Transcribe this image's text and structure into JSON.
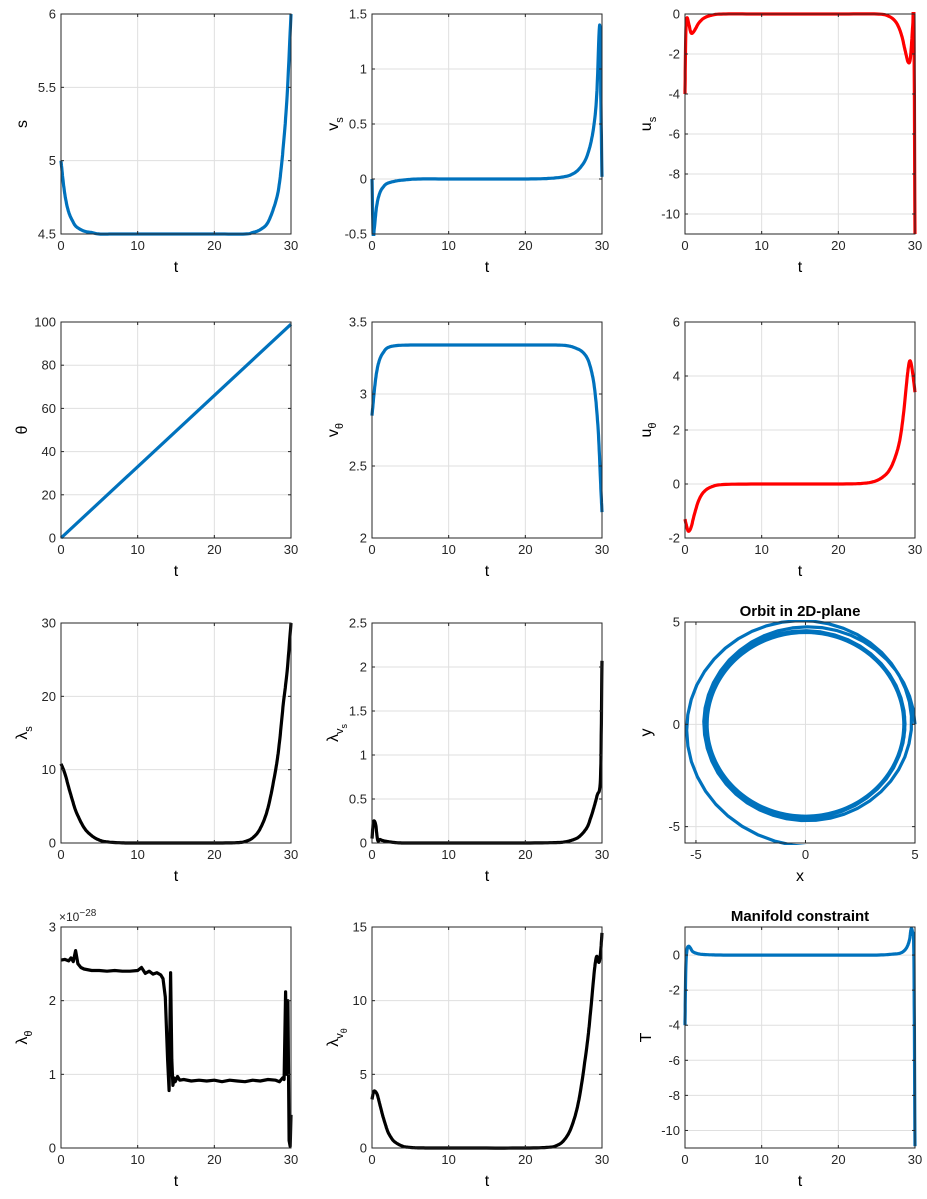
{
  "colors": {
    "blue": "#0072BD",
    "red": "#FF0000",
    "black": "#000000",
    "grid": "#DFDFDF",
    "axis": "#262626"
  },
  "chart_data": [
    {
      "type": "line",
      "id": "s",
      "title": "",
      "xlabel": "t",
      "ylabel": "s",
      "ylabel_sub": "",
      "color": "blue",
      "xlim": [
        0,
        30
      ],
      "ylim": [
        4.5,
        6
      ],
      "xticks": [
        "0",
        "10",
        "20",
        "30"
      ],
      "yticks": [
        "4.5",
        "5",
        "5.5",
        "6"
      ],
      "grid": true,
      "series": [
        {
          "x": [
            0,
            0.3,
            0.6,
            1,
            1.5,
            2,
            3,
            4,
            5,
            7,
            10,
            15,
            20,
            24,
            25,
            26,
            27,
            28,
            28.5,
            29,
            29.5,
            30
          ],
          "y": [
            5.0,
            4.85,
            4.74,
            4.65,
            4.59,
            4.55,
            4.52,
            4.51,
            4.5,
            4.5,
            4.5,
            4.5,
            4.5,
            4.5,
            4.51,
            4.53,
            4.58,
            4.72,
            4.85,
            5.1,
            5.45,
            6.0
          ]
        }
      ]
    },
    {
      "type": "line",
      "id": "vs",
      "title": "",
      "xlabel": "t",
      "ylabel": "v",
      "ylabel_sub": "s",
      "color": "blue",
      "xlim": [
        0,
        30
      ],
      "ylim": [
        -0.5,
        1.5
      ],
      "xticks": [
        "0",
        "10",
        "20",
        "30"
      ],
      "yticks": [
        "-0.5",
        "0",
        "0.5",
        "1",
        "1.5"
      ],
      "grid": true,
      "series": [
        {
          "x": [
            0,
            0.15,
            0.3,
            0.6,
            1,
            1.5,
            2,
            3,
            4,
            6,
            10,
            15,
            20,
            23,
            25,
            26,
            27,
            28,
            28.8,
            29.3,
            29.7,
            29.85,
            30
          ],
          "y": [
            0,
            -0.5,
            -0.45,
            -0.25,
            -0.13,
            -0.07,
            -0.04,
            -0.02,
            -0.01,
            0,
            0,
            0,
            0,
            0.005,
            0.02,
            0.04,
            0.09,
            0.2,
            0.42,
            0.75,
            1.4,
            0.7,
            0.02
          ]
        }
      ]
    },
    {
      "type": "line",
      "id": "us",
      "title": "",
      "xlabel": "t",
      "ylabel": "u",
      "ylabel_sub": "s",
      "color": "red",
      "xlim": [
        0,
        30
      ],
      "ylim": [
        -11,
        0
      ],
      "xticks": [
        "0",
        "10",
        "20",
        "30"
      ],
      "yticks": [
        "-10",
        "-8",
        "-6",
        "-4",
        "-2",
        "0"
      ],
      "grid": true,
      "series": [
        {
          "x": [
            0,
            0.1,
            0.25,
            0.5,
            0.8,
            1.2,
            1.8,
            2.5,
            3.5,
            5,
            10,
            20,
            25,
            26.5,
            27.5,
            28.2,
            28.7,
            29.1,
            29.4,
            29.7,
            29.85,
            30
          ],
          "y": [
            -4.0,
            -1.0,
            -0.2,
            -0.5,
            -0.95,
            -0.85,
            -0.45,
            -0.2,
            -0.06,
            0,
            0,
            0,
            0,
            -0.1,
            -0.4,
            -1.0,
            -1.8,
            -2.4,
            -2.2,
            -0.6,
            0,
            -11
          ]
        }
      ]
    },
    {
      "type": "line",
      "id": "theta",
      "title": "",
      "xlabel": "t",
      "ylabel": "θ",
      "ylabel_sub": "",
      "color": "blue",
      "xlim": [
        0,
        30
      ],
      "ylim": [
        0,
        100
      ],
      "xticks": [
        "0",
        "10",
        "20",
        "30"
      ],
      "yticks": [
        "0",
        "20",
        "40",
        "60",
        "80",
        "100"
      ],
      "grid": true,
      "series": [
        {
          "x": [
            0,
            30
          ],
          "y": [
            0,
            99
          ]
        }
      ]
    },
    {
      "type": "line",
      "id": "vtheta",
      "title": "",
      "xlabel": "t",
      "ylabel": "v",
      "ylabel_sub": "θ",
      "color": "blue",
      "xlim": [
        0,
        30
      ],
      "ylim": [
        2,
        3.5
      ],
      "xticks": [
        "0",
        "10",
        "20",
        "30"
      ],
      "yticks": [
        "2",
        "2.5",
        "3",
        "3.5"
      ],
      "grid": true,
      "series": [
        {
          "x": [
            0,
            0.3,
            0.6,
            1,
            1.5,
            2,
            3,
            5,
            10,
            20,
            24,
            25.5,
            26.5,
            27.5,
            28.3,
            29,
            29.5,
            29.8,
            30
          ],
          "y": [
            2.85,
            3.02,
            3.15,
            3.24,
            3.29,
            3.32,
            3.335,
            3.34,
            3.34,
            3.34,
            3.34,
            3.335,
            3.32,
            3.29,
            3.22,
            3.05,
            2.75,
            2.4,
            2.18
          ]
        }
      ]
    },
    {
      "type": "line",
      "id": "utheta",
      "title": "",
      "xlabel": "t",
      "ylabel": "u",
      "ylabel_sub": "θ",
      "color": "red",
      "xlim": [
        0,
        30
      ],
      "ylim": [
        -2,
        6
      ],
      "xticks": [
        "0",
        "10",
        "20",
        "30"
      ],
      "yticks": [
        "-2",
        "0",
        "2",
        "4",
        "6"
      ],
      "grid": true,
      "series": [
        {
          "x": [
            0,
            0.2,
            0.45,
            0.8,
            1.2,
            1.8,
            2.5,
            3.5,
            5,
            10,
            20,
            23,
            24.5,
            25.5,
            26.5,
            27.3,
            28,
            28.5,
            29,
            29.3,
            29.6,
            30
          ],
          "y": [
            -1.3,
            -1.55,
            -1.75,
            -1.6,
            -1.15,
            -0.6,
            -0.28,
            -0.1,
            -0.02,
            0,
            0,
            0.02,
            0.08,
            0.2,
            0.45,
            0.9,
            1.6,
            2.6,
            4.0,
            4.55,
            4.3,
            3.4
          ]
        }
      ]
    },
    {
      "type": "line",
      "id": "lambda_s",
      "title": "",
      "xlabel": "t",
      "ylabel": "λ",
      "ylabel_sub": "s",
      "color": "black",
      "xlim": [
        0,
        30
      ],
      "ylim": [
        0,
        30
      ],
      "xticks": [
        "0",
        "10",
        "20",
        "30"
      ],
      "yticks": [
        "0",
        "10",
        "20",
        "30"
      ],
      "grid": true,
      "series": [
        {
          "x": [
            0,
            0.5,
            1,
            1.5,
            2,
            3,
            4,
            5,
            6,
            8,
            10,
            20,
            23,
            24,
            25,
            26,
            27,
            28,
            28.5,
            29,
            29.5,
            30
          ],
          "y": [
            10.8,
            9.5,
            7.6,
            5.8,
            4.2,
            2.1,
            1.0,
            0.4,
            0.15,
            0.02,
            0,
            0,
            0.05,
            0.2,
            0.7,
            2.0,
            4.8,
            10,
            13.8,
            19,
            23.5,
            30
          ]
        }
      ]
    },
    {
      "type": "line",
      "id": "lambda_vs",
      "title": "",
      "xlabel": "t",
      "ylabel": "λ",
      "ylabel_sub": "v",
      "ylabel_subsub": "s",
      "color": "black",
      "xlim": [
        0,
        30
      ],
      "ylim": [
        0,
        2.5
      ],
      "xticks": [
        "0",
        "10",
        "20",
        "30"
      ],
      "yticks": [
        "0",
        "0.5",
        "1",
        "1.5",
        "2",
        "2.5"
      ],
      "grid": true,
      "series": [
        {
          "x": [
            0,
            0.15,
            0.3,
            0.5,
            0.65,
            0.8,
            1,
            1.3,
            1.8,
            2.5,
            3,
            4,
            6,
            10,
            20,
            24,
            25,
            26,
            27,
            28,
            28.5,
            29,
            29.4,
            29.7,
            29.85,
            30
          ],
          "y": [
            0.05,
            0.22,
            0.25,
            0.2,
            0.08,
            0.02,
            0.04,
            0.03,
            0.02,
            0.01,
            0.005,
            0,
            0,
            0,
            0,
            0.005,
            0.01,
            0.03,
            0.07,
            0.17,
            0.28,
            0.42,
            0.55,
            0.62,
            0.9,
            2.07
          ]
        }
      ]
    },
    {
      "type": "line",
      "id": "orbit",
      "title": "Orbit in 2D-plane",
      "xlabel": "x",
      "ylabel": "y",
      "ylabel_sub": "",
      "color": "blue",
      "xlim": [
        -5.5,
        5
      ],
      "ylim": [
        -5.8,
        5
      ],
      "xticks": [
        "-5",
        "0",
        "5"
      ],
      "yticks": [
        "-5",
        "0",
        "5"
      ],
      "grid": true,
      "orbit": {
        "r_start": 5.0,
        "r_mid": 4.5,
        "r_end": 6.0,
        "theta_end": 99,
        "x_end": -1.8,
        "y_end": -5.7
      },
      "series": []
    },
    {
      "type": "line",
      "id": "lambda_theta",
      "title": "",
      "xlabel": "t",
      "ylabel": "λ",
      "ylabel_sub": "θ",
      "color": "black",
      "xlim": [
        0,
        30
      ],
      "ylim": [
        0,
        3
      ],
      "xticks": [
        "0",
        "10",
        "20",
        "30"
      ],
      "yticks": [
        "0",
        "1",
        "2",
        "3"
      ],
      "grid": true,
      "exponent": "×10^{-28}",
      "exponent_base": "×10",
      "exponent_power": "−28",
      "series": [
        {
          "x": [
            0,
            0.5,
            1,
            1.3,
            1.6,
            1.9,
            2.2,
            2.6,
            3,
            4,
            5,
            6,
            7,
            8,
            9,
            10,
            10.5,
            11,
            11.5,
            12,
            12.5,
            13,
            13.3,
            13.6,
            13.9,
            14.1,
            14.3,
            14.45,
            14.6,
            14.75,
            14.9,
            15.2,
            15.5,
            16,
            17,
            18,
            19,
            20,
            21,
            22,
            23,
            24,
            25,
            26,
            27,
            28,
            28.5,
            28.9,
            29.1,
            29.3,
            29.45,
            29.6,
            29.75,
            29.9,
            30
          ],
          "y": [
            2.55,
            2.56,
            2.54,
            2.58,
            2.53,
            2.68,
            2.5,
            2.45,
            2.43,
            2.41,
            2.41,
            2.4,
            2.41,
            2.4,
            2.4,
            2.41,
            2.45,
            2.37,
            2.4,
            2.36,
            2.38,
            2.35,
            2.3,
            2.05,
            1.2,
            0.78,
            2.38,
            1.2,
            0.85,
            0.95,
            0.9,
            0.97,
            0.92,
            0.93,
            0.91,
            0.92,
            0.91,
            0.92,
            0.9,
            0.92,
            0.91,
            0.9,
            0.92,
            0.91,
            0.93,
            0.92,
            0.9,
            0.95,
            0.93,
            2.12,
            1.0,
            2.0,
            0.1,
            0.02,
            0.45
          ]
        }
      ]
    },
    {
      "type": "line",
      "id": "lambda_vtheta",
      "title": "",
      "xlabel": "t",
      "ylabel": "λ",
      "ylabel_sub": "v",
      "ylabel_subsub": "θ",
      "color": "black",
      "xlim": [
        0,
        30
      ],
      "ylim": [
        0,
        15
      ],
      "xticks": [
        "0",
        "10",
        "20",
        "30"
      ],
      "yticks": [
        "0",
        "5",
        "10",
        "15"
      ],
      "grid": true,
      "series": [
        {
          "x": [
            0,
            0.2,
            0.4,
            0.7,
            1,
            1.4,
            2,
            2.5,
            3,
            4,
            5,
            6,
            8,
            10,
            20,
            23,
            24,
            25,
            26,
            27,
            28,
            28.5,
            29,
            29.3,
            29.6,
            29.8,
            30
          ],
          "y": [
            3.3,
            3.8,
            3.85,
            3.6,
            3.0,
            2.2,
            1.2,
            0.7,
            0.4,
            0.12,
            0.04,
            0.01,
            0,
            0,
            0,
            0.05,
            0.15,
            0.5,
            1.4,
            3.3,
            6.8,
            9.2,
            12,
            13,
            12.6,
            13.2,
            14.6
          ]
        }
      ]
    },
    {
      "type": "line",
      "id": "manifold",
      "title": "Manifold constraint",
      "xlabel": "t",
      "ylabel": "T",
      "ylabel_sub": "",
      "color": "blue",
      "xlim": [
        0,
        30
      ],
      "ylim": [
        -11,
        1.6
      ],
      "xticks": [
        "0",
        "10",
        "20",
        "30"
      ],
      "yticks": [
        "-10",
        "-8",
        "-6",
        "-4",
        "-2",
        "0"
      ],
      "grid": true,
      "series": [
        {
          "x": [
            0,
            0.1,
            0.25,
            0.45,
            0.7,
            1,
            1.5,
            2,
            3,
            5,
            10,
            20,
            25,
            27,
            28,
            28.6,
            29.0,
            29.3,
            29.5,
            29.7,
            29.85,
            30
          ],
          "y": [
            -4.0,
            -0.8,
            0.25,
            0.5,
            0.4,
            0.2,
            0.1,
            0.05,
            0.02,
            0,
            0,
            0,
            0,
            0.05,
            0.1,
            0.25,
            0.5,
            0.9,
            1.5,
            1.2,
            0,
            -10.9
          ]
        }
      ]
    }
  ]
}
